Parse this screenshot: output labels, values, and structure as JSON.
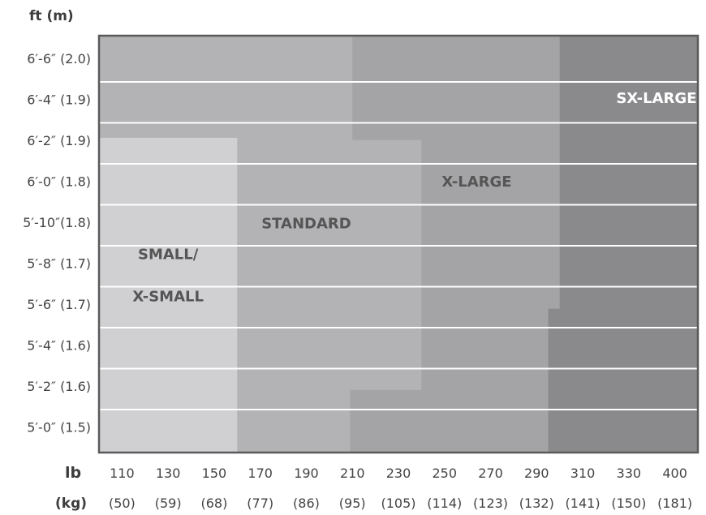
{
  "chart_data": {
    "type": "area",
    "title": "",
    "y_unit_label": "ft  (m)",
    "y_ticks": [
      "6′-6″ (2.0)",
      "6′-4″ (1.9)",
      "6′-2″ (1.9)",
      "6′-0″ (1.8)",
      "5′-10″(1.8)",
      "5′-8″ (1.7)",
      "5′-6″ (1.7)",
      "5′-4″ (1.6)",
      "5′-2″ (1.6)",
      "5′-0″ (1.5)"
    ],
    "x_lb_label": "lb",
    "x_kg_label": "(kg)",
    "x_ticks_lb": [
      "110",
      "130",
      "150",
      "170",
      "190",
      "210",
      "230",
      "250",
      "270",
      "290",
      "310",
      "330",
      "400"
    ],
    "x_ticks_kg": [
      "(50)",
      "(59)",
      "(68)",
      "(77)",
      "(86)",
      "(95)",
      "(105)",
      "(114)",
      "(123)",
      "(132)",
      "(141)",
      "(150)",
      "(181)"
    ],
    "regions": [
      {
        "name": "SX-LARGE",
        "color": "#8a8a8c",
        "label_lines": [
          "SX-LARGE"
        ],
        "label_pos": {
          "x": 12.1,
          "y": 1.5
        },
        "dark": true,
        "polygon": [
          [
            0,
            0
          ],
          [
            13,
            0
          ],
          [
            13,
            10
          ],
          [
            0,
            10
          ]
        ]
      },
      {
        "name": "X-LARGE",
        "color": "#a4a4a6",
        "label_lines": [
          "X-LARGE"
        ],
        "label_pos": {
          "x": 8.2,
          "y": 3.5
        },
        "polygon": [
          [
            0,
            0
          ],
          [
            10.0,
            0
          ],
          [
            10.0,
            6.55
          ],
          [
            9.75,
            6.55
          ],
          [
            9.75,
            10
          ],
          [
            0,
            10
          ]
        ]
      },
      {
        "name": "STANDARD",
        "color": "#b3b3b5",
        "label_lines": [
          "STANDARD"
        ],
        "label_pos": {
          "x": 4.5,
          "y": 4.5
        },
        "polygon": [
          [
            0,
            0
          ],
          [
            5.5,
            0
          ],
          [
            5.5,
            2.5
          ],
          [
            7.0,
            2.5
          ],
          [
            7.0,
            8.5
          ],
          [
            5.45,
            8.5
          ],
          [
            5.45,
            10
          ],
          [
            0,
            10
          ]
        ]
      },
      {
        "name": "SMALL/ X-SMALL",
        "color": "#d0d0d2",
        "label_lines": [
          "SMALL/",
          "X-SMALL"
        ],
        "label_pos": {
          "x": 1.5,
          "y": 5.75
        },
        "polygon": [
          [
            0,
            2.45
          ],
          [
            3.0,
            2.45
          ],
          [
            3.0,
            10
          ],
          [
            0,
            10
          ]
        ]
      }
    ],
    "gridlines": true
  }
}
